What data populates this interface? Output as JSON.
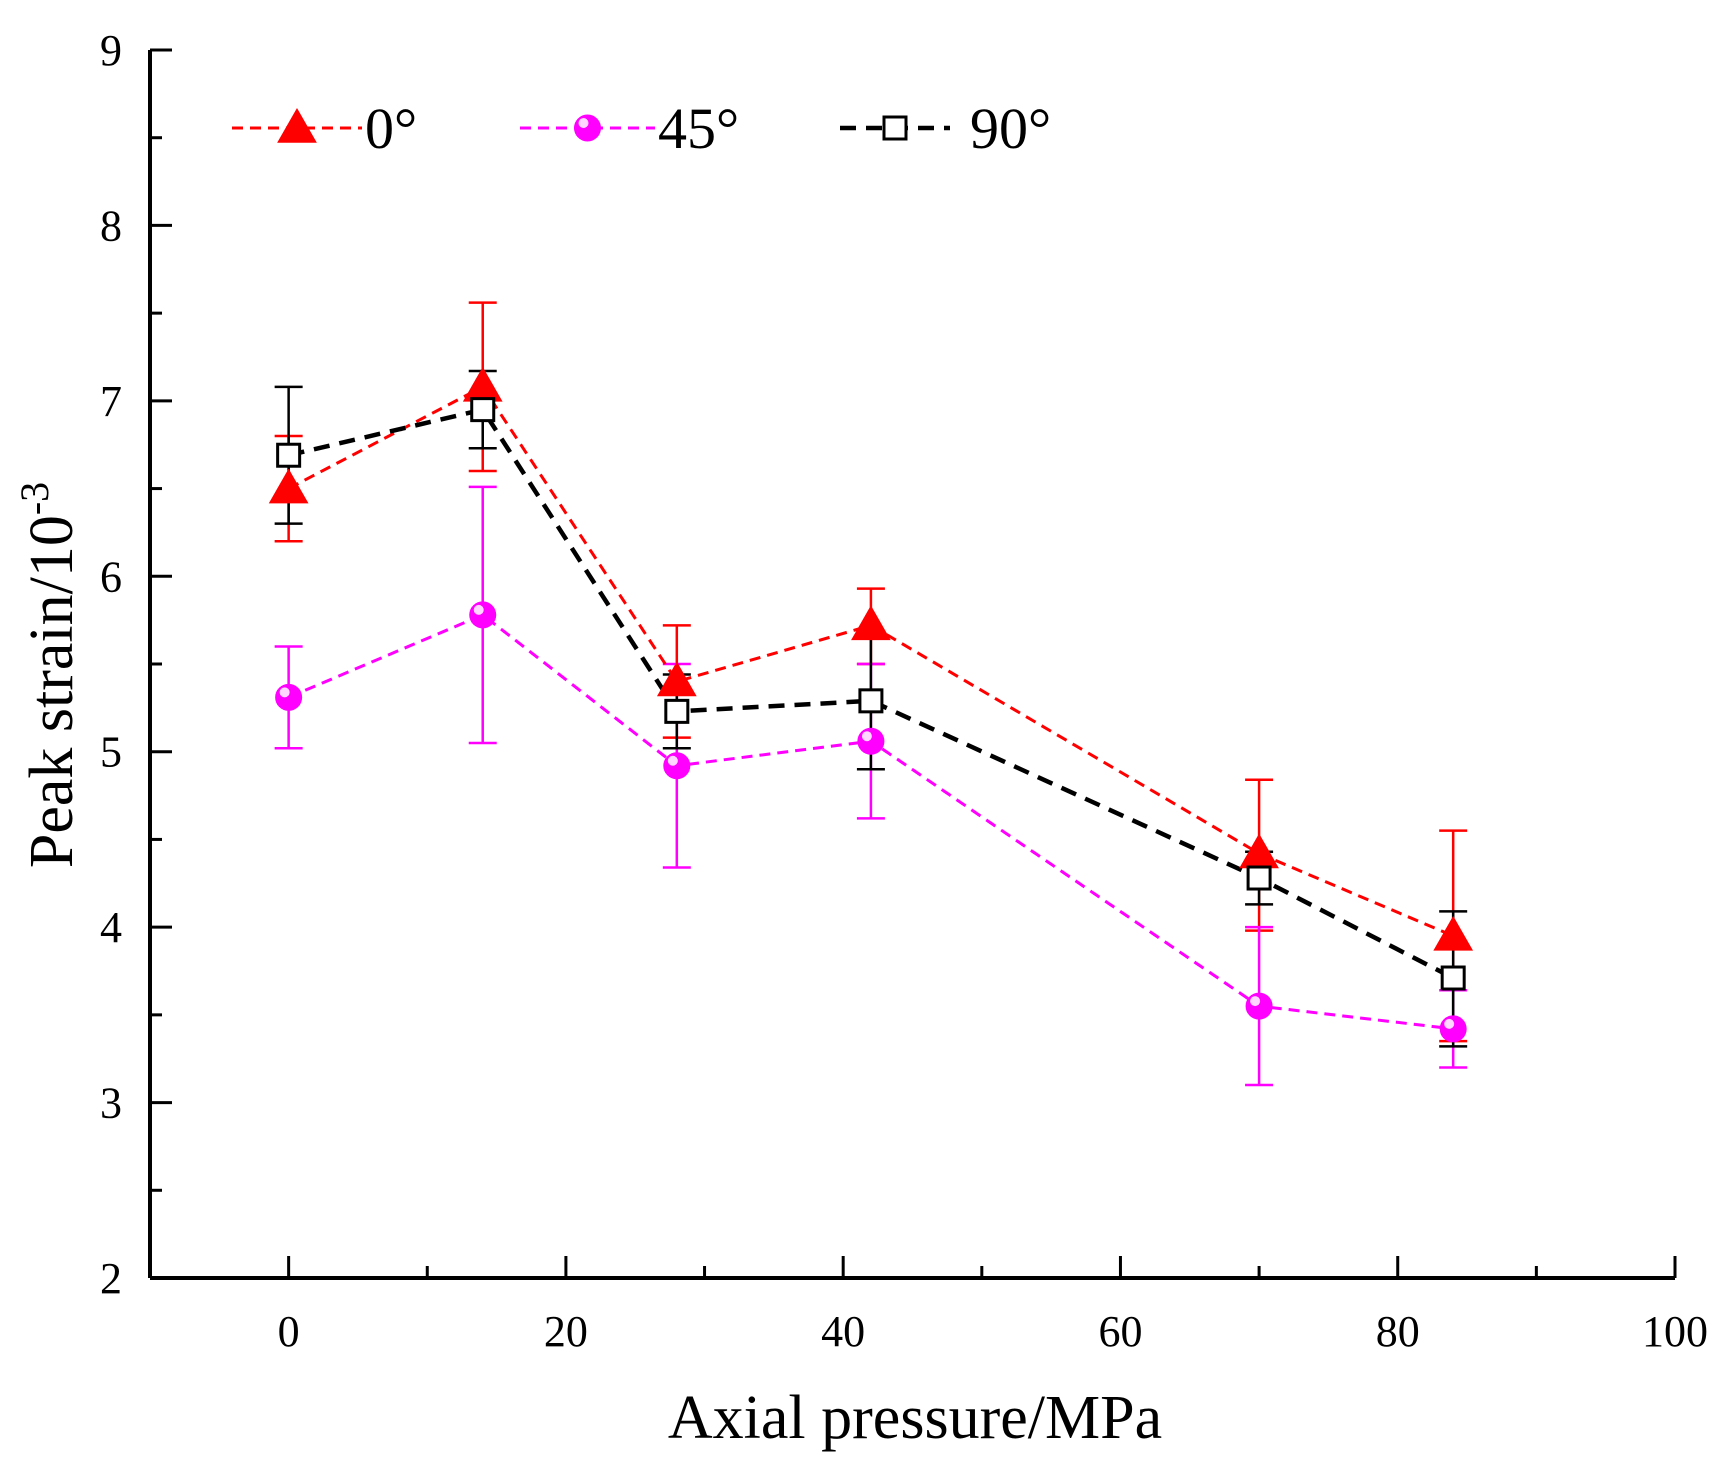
{
  "chart_data": {
    "type": "line",
    "title": "",
    "xlabel": "Axial pressure/MPa",
    "ylabel": "Peak strain/10",
    "ylabel_sup": "-3",
    "xlim": [
      -10,
      100
    ],
    "ylim": [
      2,
      9
    ],
    "x_ticks": [
      0,
      20,
      40,
      60,
      80,
      100
    ],
    "x_tick_labels": [
      "0",
      "20",
      "40",
      "60",
      "80",
      "100"
    ],
    "y_ticks": [
      2,
      3,
      4,
      5,
      6,
      7,
      8,
      9
    ],
    "y_tick_labels": [
      "2",
      "3",
      "4",
      "5",
      "6",
      "7",
      "8",
      "9"
    ],
    "grid": false,
    "legend_position": "top-left",
    "x": [
      0,
      14,
      28,
      42,
      70,
      84
    ],
    "series": [
      {
        "name": "0°",
        "color": "#ff0000",
        "marker": "triangle",
        "values": [
          6.5,
          7.08,
          5.4,
          5.72,
          4.42,
          3.95
        ],
        "err_low": [
          6.2,
          6.6,
          5.08,
          5.5,
          3.98,
          3.35
        ],
        "err_high": [
          6.8,
          7.56,
          5.72,
          5.93,
          4.84,
          4.55
        ]
      },
      {
        "name": "45°",
        "color": "#ff00ff",
        "marker": "circle",
        "values": [
          5.31,
          5.78,
          4.92,
          5.06,
          3.55,
          3.42
        ],
        "err_low": [
          5.02,
          5.05,
          4.34,
          4.62,
          3.1,
          3.2
        ],
        "err_high": [
          5.6,
          6.51,
          5.5,
          5.5,
          4.0,
          3.64
        ]
      },
      {
        "name": "90°",
        "color": "#000000",
        "marker": "square",
        "values": [
          6.69,
          6.95,
          5.23,
          5.29,
          4.28,
          3.71
        ],
        "err_low": [
          6.3,
          6.73,
          5.02,
          4.9,
          4.13,
          3.32
        ],
        "err_high": [
          7.08,
          7.17,
          5.44,
          5.68,
          4.43,
          4.09
        ]
      }
    ]
  }
}
